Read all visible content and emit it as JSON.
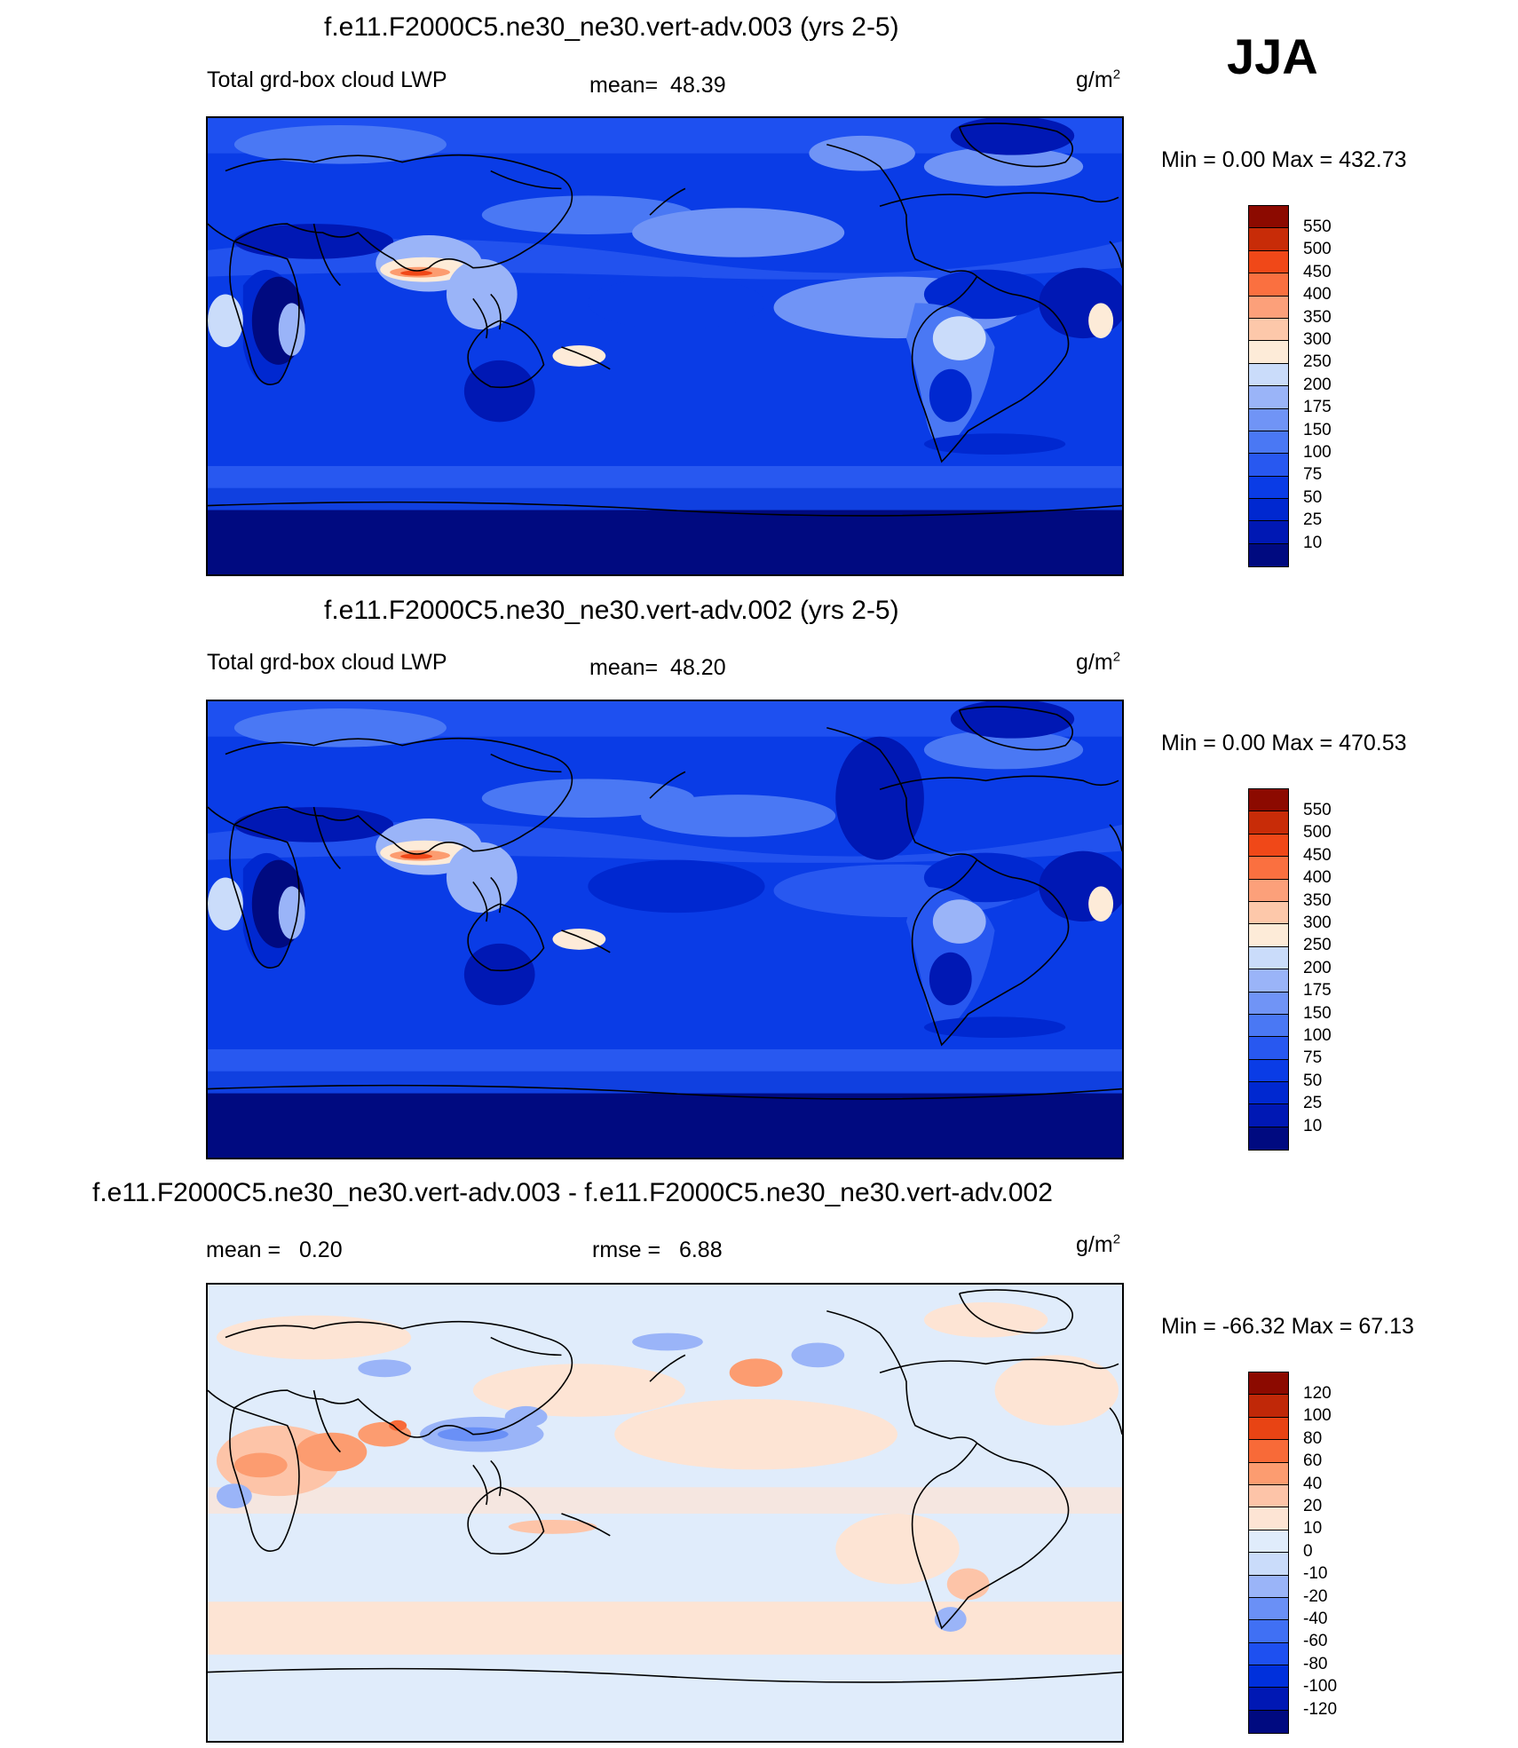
{
  "season": "JJA",
  "units_base": "g/m",
  "units_exp": "2",
  "palette_abs": [
    "#000a80",
    "#0018b4",
    "#0028d0",
    "#0a3ce6",
    "#2858f0",
    "#4a78f4",
    "#7094f6",
    "#9ab4f8",
    "#cadcfa",
    "#fdebd8",
    "#fdc8aa",
    "#fca07a",
    "#fa7040",
    "#f04818",
    "#c82c08",
    "#8c0a00"
  ],
  "palette_diff": [
    "#000a80",
    "#0018b4",
    "#0030dc",
    "#1e50f0",
    "#4070f4",
    "#6a90f6",
    "#9ab4f8",
    "#cadcfa",
    "#e0ecfb",
    "#fde4d4",
    "#fdc4a8",
    "#fc9c70",
    "#f86a38",
    "#e84414",
    "#c02808",
    "#8c0a00"
  ],
  "panels": [
    {
      "title": "f.e11.F2000C5.ne30_ne30.vert-adv.003 (yrs 2-5)",
      "variable": "Total grd-box cloud LWP",
      "mean_label": "mean=",
      "mean_value": "48.39",
      "range_text": "Min =    0.00 Max = 432.73",
      "levels": [
        "550",
        "500",
        "450",
        "400",
        "350",
        "300",
        "250",
        "200",
        "175",
        "150",
        "100",
        "75",
        "50",
        "25",
        "10"
      ]
    },
    {
      "title": "f.e11.F2000C5.ne30_ne30.vert-adv.002 (yrs 2-5)",
      "variable": "Total grd-box cloud LWP",
      "mean_label": "mean=",
      "mean_value": "48.20",
      "range_text": "Min =    0.00 Max = 470.53",
      "levels": [
        "550",
        "500",
        "450",
        "400",
        "350",
        "300",
        "250",
        "200",
        "175",
        "150",
        "100",
        "75",
        "50",
        "25",
        "10"
      ]
    },
    {
      "title": "f.e11.F2000C5.ne30_ne30.vert-adv.003 - f.e11.F2000C5.ne30_ne30.vert-adv.002",
      "mean_label": "mean =",
      "mean_value": "0.20",
      "rmse_label": "rmse =",
      "rmse_value": "6.88",
      "range_text": "Min = -66.32 Max =  67.13",
      "levels": [
        "120",
        "100",
        "80",
        "60",
        "40",
        "20",
        "10",
        "0",
        "-10",
        "-20",
        "-40",
        "-60",
        "-80",
        "-100",
        "-120"
      ]
    }
  ]
}
